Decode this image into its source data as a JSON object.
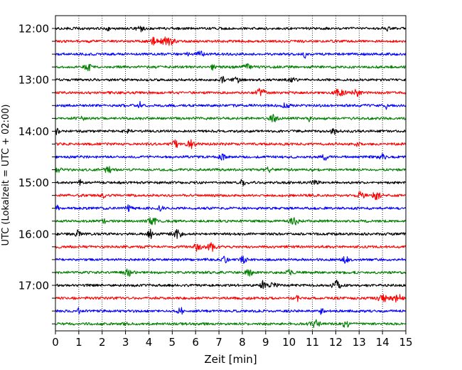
{
  "chart_data": {
    "type": "line",
    "title": "",
    "xlabel": "Zeit  [min]",
    "ylabel": "UTC (Lokalzeit = UTC + 02:00)",
    "xlim": [
      0,
      15
    ],
    "x_ticks": [
      "0",
      "1",
      "2",
      "3",
      "4",
      "5",
      "6",
      "7",
      "8",
      "9",
      "10",
      "11",
      "12",
      "13",
      "14",
      "15"
    ],
    "y_tick_labels": [
      "12:00",
      "13:00",
      "14:00",
      "15:00",
      "16:00",
      "17:00"
    ],
    "grid": "vertical dotted at each minute",
    "line_minutes": 15,
    "colors": [
      "#000000",
      "#ff0000",
      "#0000ff",
      "#008000"
    ],
    "traces": [
      {
        "start": "12:00",
        "color": "#000000"
      },
      {
        "start": "12:15",
        "color": "#ff0000"
      },
      {
        "start": "12:30",
        "color": "#0000ff"
      },
      {
        "start": "12:45",
        "color": "#008000"
      },
      {
        "start": "13:00",
        "color": "#000000"
      },
      {
        "start": "13:15",
        "color": "#ff0000"
      },
      {
        "start": "13:30",
        "color": "#0000ff"
      },
      {
        "start": "13:45",
        "color": "#008000"
      },
      {
        "start": "14:00",
        "color": "#000000"
      },
      {
        "start": "14:15",
        "color": "#ff0000"
      },
      {
        "start": "14:30",
        "color": "#0000ff"
      },
      {
        "start": "14:45",
        "color": "#008000"
      },
      {
        "start": "15:00",
        "color": "#000000"
      },
      {
        "start": "15:15",
        "color": "#ff0000"
      },
      {
        "start": "15:30",
        "color": "#0000ff"
      },
      {
        "start": "15:45",
        "color": "#008000"
      },
      {
        "start": "16:00",
        "color": "#000000"
      },
      {
        "start": "16:15",
        "color": "#ff0000"
      },
      {
        "start": "16:30",
        "color": "#0000ff"
      },
      {
        "start": "16:45",
        "color": "#008000"
      },
      {
        "start": "17:00",
        "color": "#000000"
      },
      {
        "start": "17:15",
        "color": "#ff0000"
      },
      {
        "start": "17:30",
        "color": "#0000ff"
      },
      {
        "start": "17:45",
        "color": "#008000"
      }
    ]
  }
}
